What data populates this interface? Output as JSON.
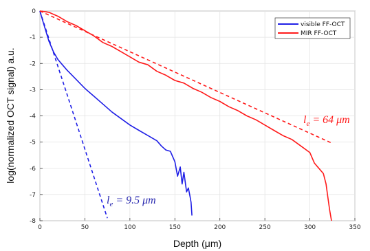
{
  "chart_data": {
    "type": "line",
    "title": "",
    "xlabel": "Depth (μm)",
    "ylabel": "log(normalized OCT signal) a.u.",
    "xlim": [
      0,
      350
    ],
    "ylim": [
      -8,
      0
    ],
    "xticks": [
      0,
      50,
      100,
      150,
      200,
      250,
      300,
      350
    ],
    "yticks": [
      0,
      -1,
      -2,
      -3,
      -4,
      -5,
      -6,
      -7,
      -8
    ],
    "grid": true,
    "legend_position": "top-right",
    "series": [
      {
        "name": "visible FF-OCT",
        "color": "#1f1fe6",
        "style": "solid",
        "x": [
          0,
          3,
          6,
          10,
          15,
          20,
          25,
          30,
          40,
          50,
          60,
          70,
          80,
          90,
          100,
          110,
          120,
          130,
          135,
          140,
          145,
          150,
          153,
          156,
          158,
          160,
          163,
          165,
          167,
          168,
          169
        ],
        "y": [
          0,
          -0.35,
          -0.7,
          -1.15,
          -1.55,
          -1.85,
          -2.05,
          -2.25,
          -2.6,
          -2.95,
          -3.25,
          -3.55,
          -3.85,
          -4.1,
          -4.35,
          -4.55,
          -4.75,
          -4.95,
          -5.15,
          -5.3,
          -5.35,
          -5.75,
          -6.3,
          -5.95,
          -6.6,
          -6.15,
          -6.9,
          -6.75,
          -7.1,
          -7.3,
          -7.8
        ]
      },
      {
        "name": "",
        "color": "#1f1fe6",
        "style": "dashed",
        "x": [
          0,
          75
        ],
        "y": [
          0,
          -7.9
        ]
      },
      {
        "name": "MIR FF-OCT",
        "color": "#ff1a1a",
        "style": "solid",
        "x": [
          0,
          5,
          10,
          20,
          30,
          40,
          50,
          60,
          70,
          80,
          90,
          100,
          110,
          120,
          130,
          140,
          150,
          160,
          170,
          180,
          190,
          200,
          210,
          220,
          230,
          240,
          250,
          260,
          270,
          280,
          290,
          300,
          305,
          310,
          315,
          318,
          320,
          322,
          324
        ],
        "y": [
          0,
          -0.02,
          -0.05,
          -0.2,
          -0.4,
          -0.55,
          -0.75,
          -0.95,
          -1.2,
          -1.35,
          -1.55,
          -1.75,
          -1.95,
          -2.05,
          -2.3,
          -2.45,
          -2.65,
          -2.75,
          -2.95,
          -3.1,
          -3.3,
          -3.45,
          -3.65,
          -3.8,
          -4.0,
          -4.15,
          -4.35,
          -4.55,
          -4.75,
          -4.9,
          -5.15,
          -5.4,
          -5.8,
          -6.0,
          -6.2,
          -6.6,
          -7.1,
          -7.6,
          -8.0
        ]
      },
      {
        "name": "",
        "color": "#ff1a1a",
        "style": "dashed",
        "x": [
          0,
          325
        ],
        "y": [
          0,
          -5.05
        ]
      }
    ],
    "annotations": [
      {
        "text": "l",
        "sub": "e",
        "rest": " = 9.5 μm",
        "color": "#2a2ab0"
      },
      {
        "text": "l",
        "sub": "e",
        "rest": " = 64 μm",
        "color": "#ff1a1a"
      }
    ]
  }
}
